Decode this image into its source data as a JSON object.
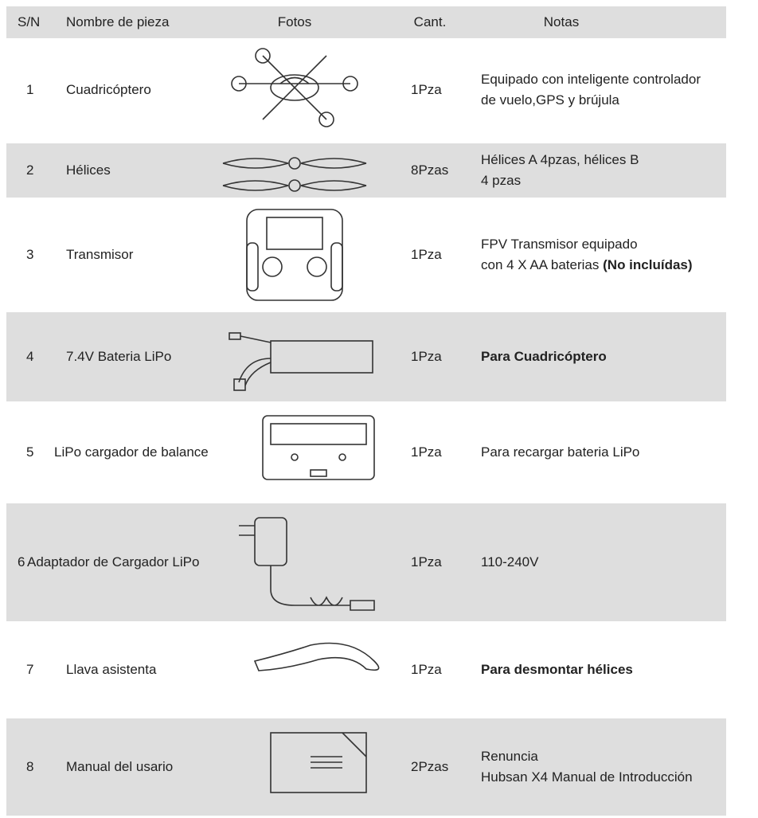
{
  "table": {
    "header": [
      "S/N",
      "Nombre de pieza",
      "Fotos",
      "Cant.",
      "Notas"
    ],
    "rows": [
      {
        "sn": "1",
        "name": "Cuadricóptero",
        "qty": "1Pza",
        "notes": [
          "Equipado con inteligente controlador",
          "de vuelo,GPS y brújula"
        ]
      },
      {
        "sn": "2",
        "name": "Hélices",
        "qty": "8Pzas",
        "notes": [
          "Hélices A 4pzas, hélices B",
          "4 pzas"
        ]
      },
      {
        "sn": "3",
        "name": "Transmisor",
        "qty": "1Pza",
        "notes": [
          "FPV Transmisor equipado",
          "con 4 X AA baterias"
        ],
        "notes_bold": "(No incluídas)"
      },
      {
        "sn": "4",
        "name": "7.4V  Bateria LiPo",
        "qty": "1Pza",
        "notes": [
          "Para Cuadricóptero"
        ]
      },
      {
        "sn": "5",
        "name": "LiPo cargador de balance",
        "qty": "1Pza",
        "notes": [
          "Para recargar bateria LiPo"
        ]
      },
      {
        "sn": "6",
        "name": "Adaptador de Cargador LiPo",
        "qty": "1Pza",
        "notes": [
          "110-240V"
        ]
      },
      {
        "sn": "7",
        "name": "Llava asistenta",
        "qty": "1Pza",
        "notes": [
          "Para desmontar hélices"
        ]
      },
      {
        "sn": "8",
        "name": "Manual del usario",
        "qty": "2Pzas",
        "notes": [
          "Renuncia",
          "Hubsan X4 Manual de Introducción"
        ]
      }
    ]
  }
}
